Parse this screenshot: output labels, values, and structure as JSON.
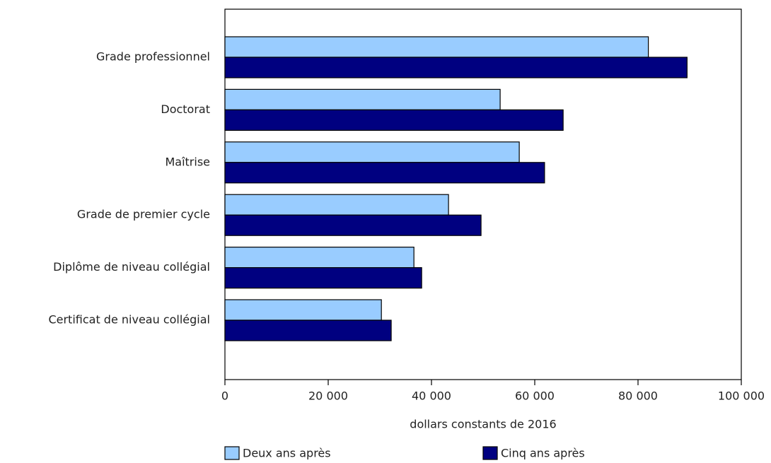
{
  "chart_data": {
    "type": "bar",
    "orientation": "horizontal",
    "categories": [
      "Grade professionnel",
      "Doctorat",
      "Maîtrise",
      "Grade de premier cycle",
      "Diplôme de niveau collégial",
      "Certificat de niveau collégial"
    ],
    "series": [
      {
        "name": "Deux ans après",
        "color": "#99ccff",
        "values": [
          82000,
          53300,
          57000,
          43300,
          36600,
          30300
        ]
      },
      {
        "name": "Cinq ans après",
        "color": "#000080",
        "values": [
          89500,
          65500,
          61900,
          49600,
          38100,
          32200
        ]
      }
    ],
    "x_label": "dollars constants de 2016",
    "xlim": [
      0,
      100000
    ],
    "xticks": [
      0,
      {
        "value": 20000,
        "label": "20 000"
      },
      {
        "value": 40000,
        "label": "40 000"
      },
      {
        "value": 60000,
        "label": "60 000"
      },
      {
        "value": 80000,
        "label": "80 000"
      },
      {
        "value": 100000,
        "label": "100 000"
      }
    ],
    "grid": false
  }
}
